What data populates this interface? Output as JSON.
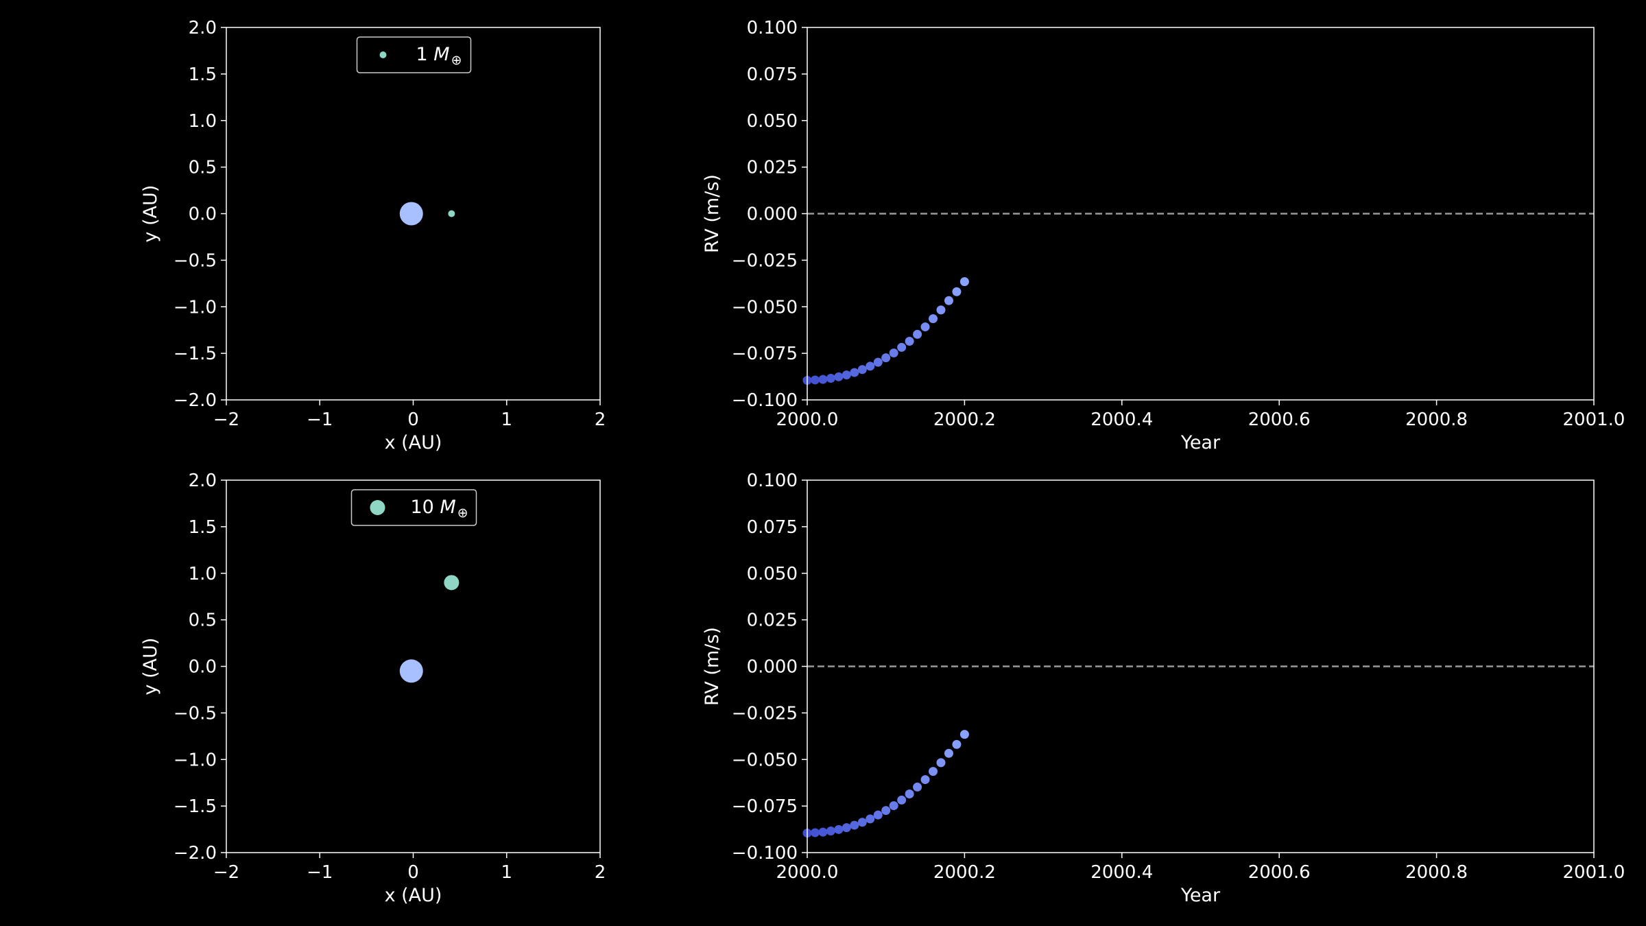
{
  "chart_data": [
    {
      "type": "scatter",
      "panel": "orbit-top",
      "xlabel": "x (AU)",
      "ylabel": "y (AU)",
      "xlim": [
        -2,
        2
      ],
      "ylim": [
        -2,
        2
      ],
      "xticks": [
        "−2",
        "−1",
        "0",
        "1",
        "2"
      ],
      "yticks": [
        "−2.0",
        "−1.5",
        "−1.0",
        "−0.5",
        "0.0",
        "0.5",
        "1.0",
        "1.5",
        "2.0"
      ],
      "legend": {
        "location": "upper center",
        "number": "1",
        "symbol": "M",
        "subscript": "⊕"
      },
      "bodies": [
        {
          "name": "star",
          "x": -0.02,
          "y": 0.0,
          "color": "#a8c0ff",
          "size": "large"
        },
        {
          "name": "planet",
          "x": 0.41,
          "y": 0.0,
          "color": "#8fd6c4",
          "size": "small"
        }
      ]
    },
    {
      "type": "scatter",
      "panel": "rv-top",
      "xlabel": "Year",
      "ylabel": "RV (m/s)",
      "xlim": [
        2000.0,
        2001.0
      ],
      "ylim": [
        -0.1,
        0.1
      ],
      "xticks": [
        "2000.0",
        "2000.2",
        "2000.4",
        "2000.6",
        "2000.8",
        "2001.0"
      ],
      "yticks": [
        "−0.100",
        "−0.075",
        "−0.050",
        "−0.025",
        "0.000",
        "0.025",
        "0.050",
        "0.075",
        "0.100"
      ],
      "reference_line": {
        "y": 0.0,
        "style": "dashed",
        "color": "#999999"
      },
      "points": [
        {
          "x": 2000.0,
          "y": -0.0895
        },
        {
          "x": 2000.01,
          "y": -0.0893
        },
        {
          "x": 2000.02,
          "y": -0.089
        },
        {
          "x": 2000.03,
          "y": -0.0884
        },
        {
          "x": 2000.04,
          "y": -0.0876
        },
        {
          "x": 2000.05,
          "y": -0.0866
        },
        {
          "x": 2000.06,
          "y": -0.0853
        },
        {
          "x": 2000.07,
          "y": -0.0837
        },
        {
          "x": 2000.08,
          "y": -0.0819
        },
        {
          "x": 2000.09,
          "y": -0.0798
        },
        {
          "x": 2000.1,
          "y": -0.0774
        },
        {
          "x": 2000.11,
          "y": -0.0748
        },
        {
          "x": 2000.12,
          "y": -0.0718
        },
        {
          "x": 2000.13,
          "y": -0.0685
        },
        {
          "x": 2000.14,
          "y": -0.0648
        },
        {
          "x": 2000.15,
          "y": -0.0608
        },
        {
          "x": 2000.16,
          "y": -0.0564
        },
        {
          "x": 2000.17,
          "y": -0.0517
        },
        {
          "x": 2000.18,
          "y": -0.0467
        },
        {
          "x": 2000.19,
          "y": -0.0419
        },
        {
          "x": 2000.2,
          "y": -0.0365
        }
      ],
      "color_start": "#3f4fd0",
      "color_end": "#8aa2ff"
    },
    {
      "type": "scatter",
      "panel": "orbit-bottom",
      "xlabel": "x (AU)",
      "ylabel": "y (AU)",
      "xlim": [
        -2,
        2
      ],
      "ylim": [
        -2,
        2
      ],
      "xticks": [
        "−2",
        "−1",
        "0",
        "1",
        "2"
      ],
      "yticks": [
        "−2.0",
        "−1.5",
        "−1.0",
        "−0.5",
        "0.0",
        "0.5",
        "1.0",
        "1.5",
        "2.0"
      ],
      "legend": {
        "location": "upper center",
        "number": "10",
        "symbol": "M",
        "subscript": "⊕"
      },
      "bodies": [
        {
          "name": "star",
          "x": -0.02,
          "y": -0.05,
          "color": "#a8c0ff",
          "size": "large"
        },
        {
          "name": "planet",
          "x": 0.41,
          "y": 0.9,
          "color": "#8fd6c4",
          "size": "medium"
        }
      ]
    },
    {
      "type": "scatter",
      "panel": "rv-bottom",
      "xlabel": "Year",
      "ylabel": "RV (m/s)",
      "xlim": [
        2000.0,
        2001.0
      ],
      "ylim": [
        -0.1,
        0.1
      ],
      "xticks": [
        "2000.0",
        "2000.2",
        "2000.4",
        "2000.6",
        "2000.8",
        "2001.0"
      ],
      "yticks": [
        "−0.100",
        "−0.075",
        "−0.050",
        "−0.025",
        "0.000",
        "0.025",
        "0.050",
        "0.075",
        "0.100"
      ],
      "reference_line": {
        "y": 0.0,
        "style": "dashed",
        "color": "#999999"
      },
      "points": [
        {
          "x": 2000.0,
          "y": -0.0895
        },
        {
          "x": 2000.01,
          "y": -0.0893
        },
        {
          "x": 2000.02,
          "y": -0.089
        },
        {
          "x": 2000.03,
          "y": -0.0884
        },
        {
          "x": 2000.04,
          "y": -0.0876
        },
        {
          "x": 2000.05,
          "y": -0.0866
        },
        {
          "x": 2000.06,
          "y": -0.0853
        },
        {
          "x": 2000.07,
          "y": -0.0837
        },
        {
          "x": 2000.08,
          "y": -0.0819
        },
        {
          "x": 2000.09,
          "y": -0.0798
        },
        {
          "x": 2000.1,
          "y": -0.0774
        },
        {
          "x": 2000.11,
          "y": -0.0748
        },
        {
          "x": 2000.12,
          "y": -0.0718
        },
        {
          "x": 2000.13,
          "y": -0.0685
        },
        {
          "x": 2000.14,
          "y": -0.0648
        },
        {
          "x": 2000.15,
          "y": -0.0608
        },
        {
          "x": 2000.16,
          "y": -0.0564
        },
        {
          "x": 2000.17,
          "y": -0.0517
        },
        {
          "x": 2000.18,
          "y": -0.0467
        },
        {
          "x": 2000.19,
          "y": -0.0419
        },
        {
          "x": 2000.2,
          "y": -0.0365
        }
      ],
      "color_start": "#3f4fd0",
      "color_end": "#8aa2ff"
    }
  ]
}
